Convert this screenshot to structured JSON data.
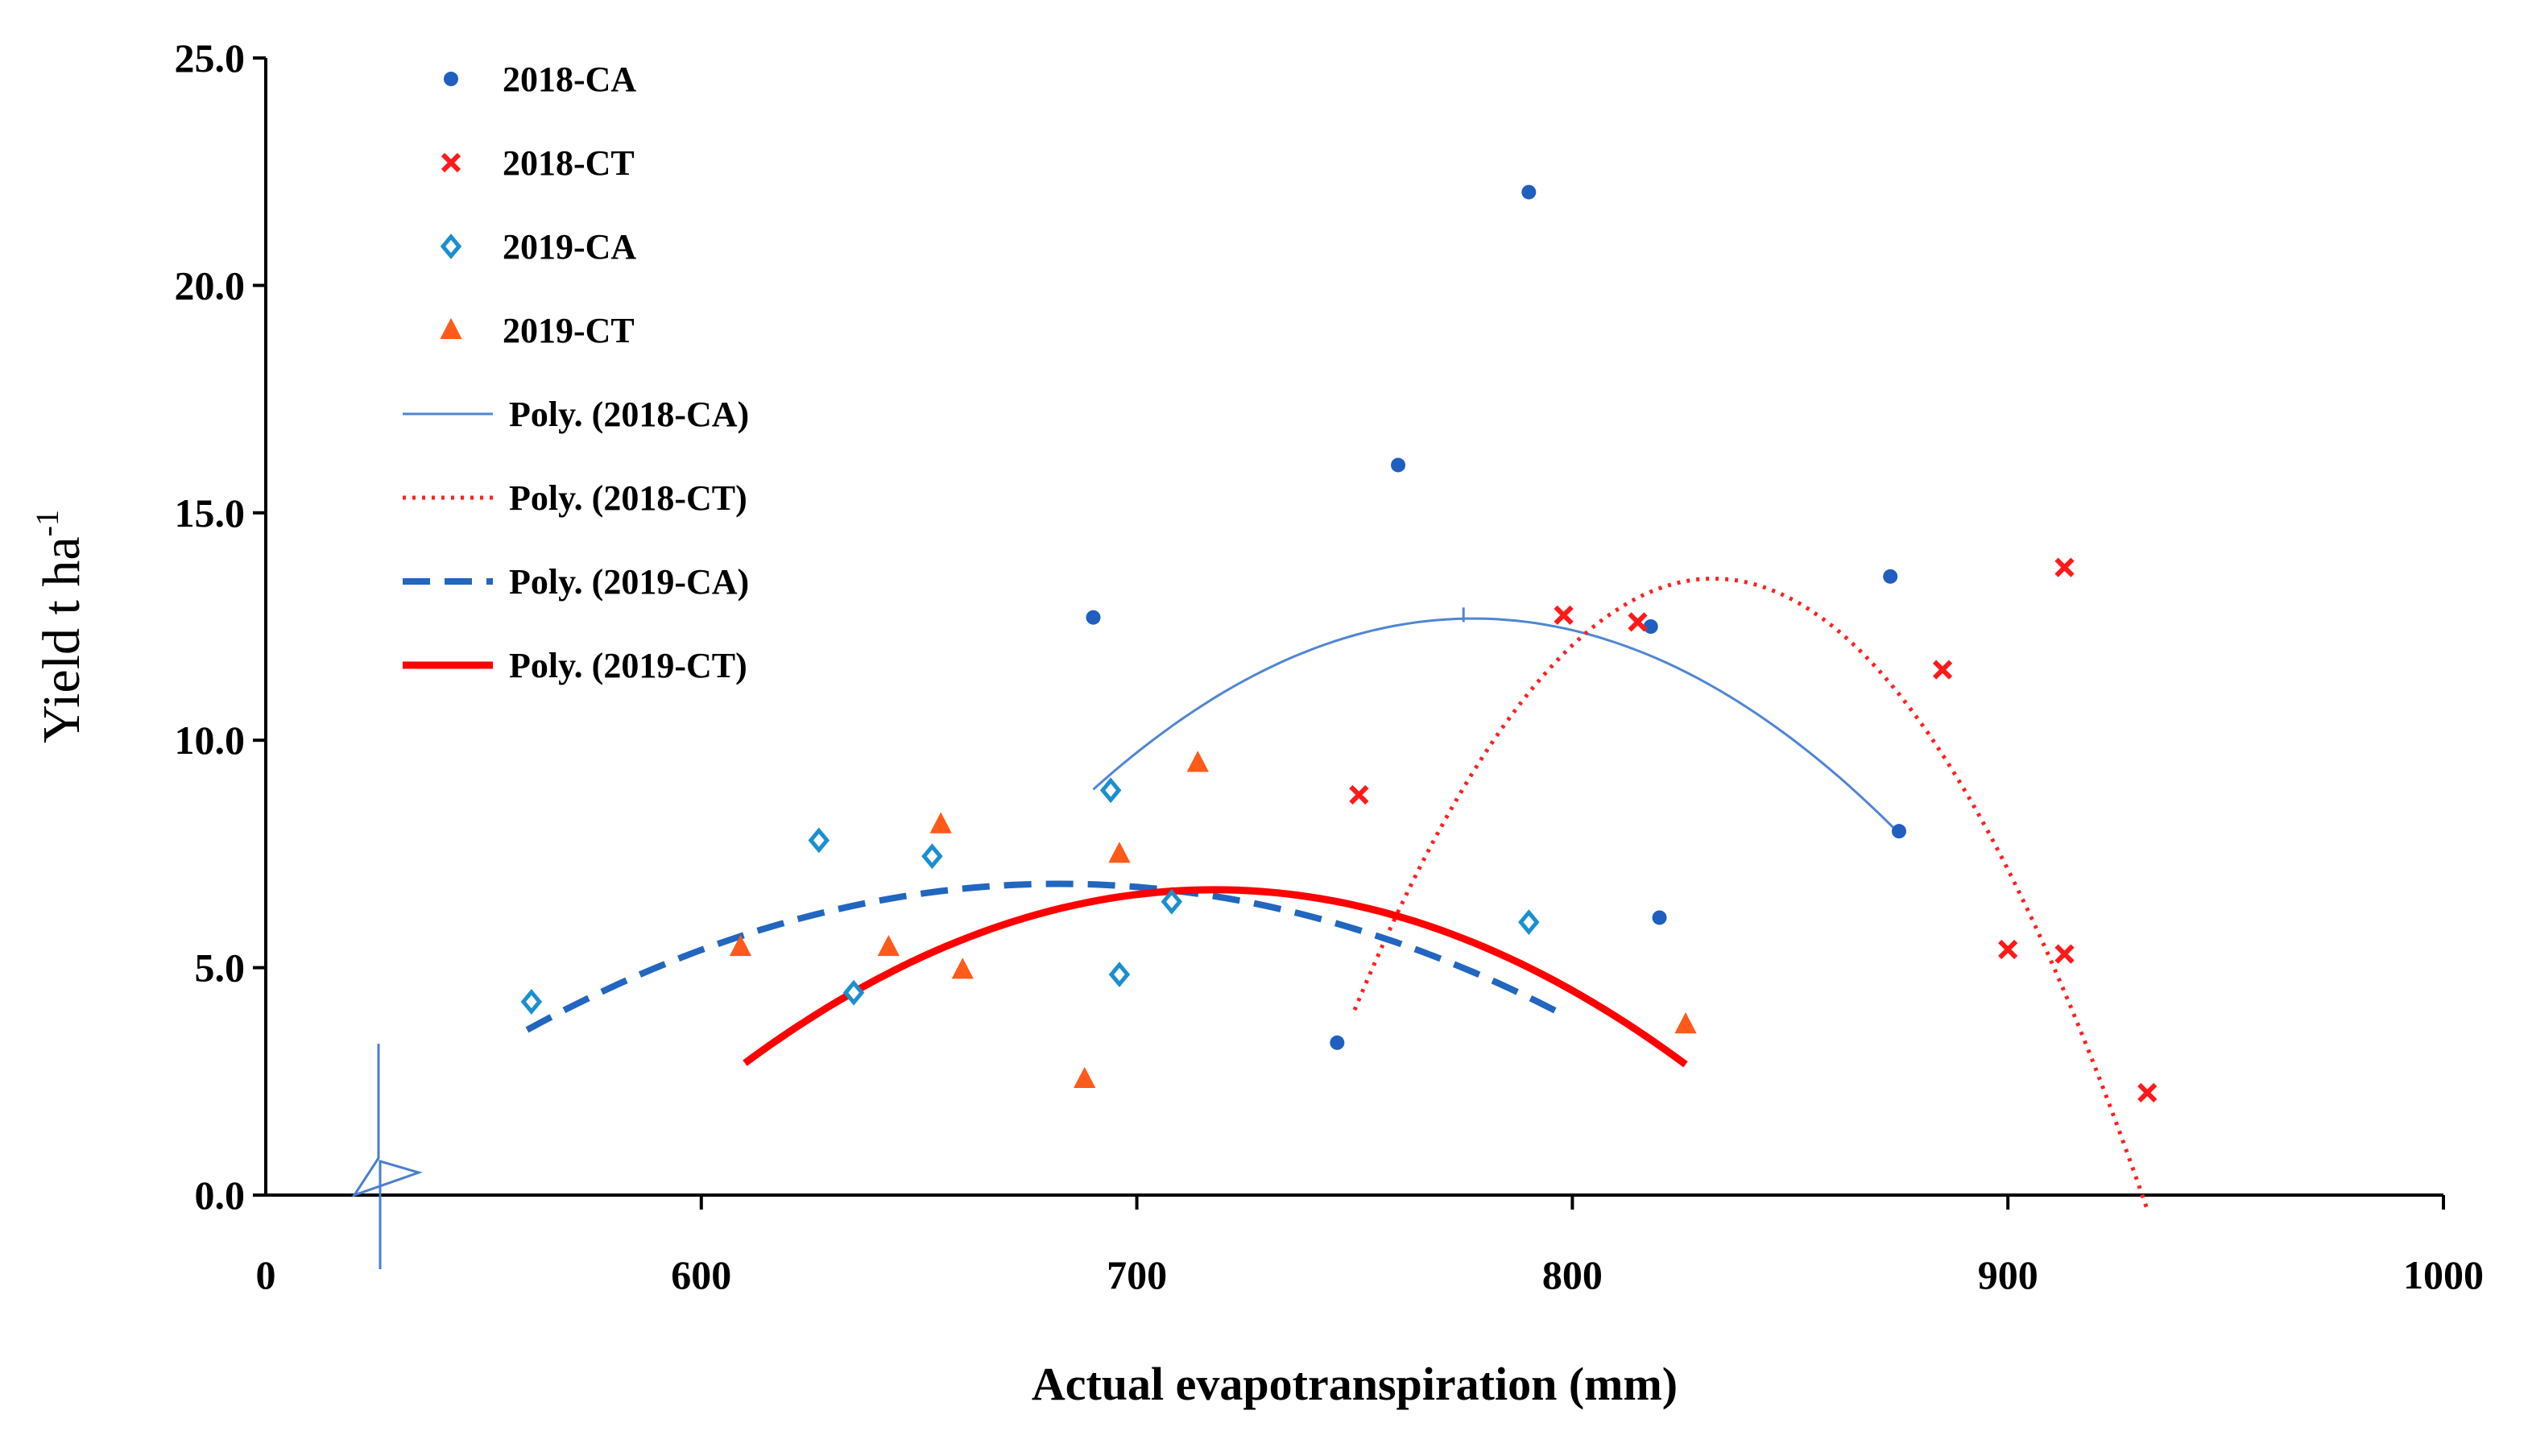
{
  "chart_data": {
    "type": "scatter",
    "title": "",
    "xlabel": "Actual evapotranspiration (mm)",
    "ylabel": "Yield t ha",
    "ylabel_superscript": "-1",
    "x_origin_label": "0",
    "xlim": [
      500,
      1000
    ],
    "ylim": [
      0,
      25
    ],
    "x_ticks": [
      "600",
      "700",
      "800",
      "900",
      "1000"
    ],
    "y_ticks": [
      "0.0",
      "5.0",
      "10.0",
      "15.0",
      "20.0",
      "25.0"
    ],
    "legend_position": "top-left",
    "colors": {
      "ca2018": "#1f5fbf",
      "ct2018": "#ff1a1a",
      "ca2019": "#1a8fd1",
      "ct2019": "#ff5a1a",
      "trend_ca2018": "#4f86d4",
      "trend_ct2018": "#ff2020",
      "trend_ca2019": "#2166c0",
      "trend_ct2019": "#ff0000"
    },
    "series": [
      {
        "name": "2018-CA",
        "kind": "points",
        "marker": "dot",
        "color_key": "ca2018",
        "points": [
          [
            690,
            12.7
          ],
          [
            746,
            3.35
          ],
          [
            760,
            16.05
          ],
          [
            790,
            22.05
          ],
          [
            818,
            12.5
          ],
          [
            820,
            6.1
          ],
          [
            873,
            13.6
          ],
          [
            875,
            8.0
          ]
        ]
      },
      {
        "name": "2018-CT",
        "kind": "points",
        "marker": "x",
        "color_key": "ct2018",
        "points": [
          [
            751,
            8.8
          ],
          [
            798,
            12.75
          ],
          [
            815,
            12.6
          ],
          [
            885,
            11.55
          ],
          [
            900,
            5.4
          ],
          [
            913,
            13.8
          ],
          [
            913,
            5.3
          ],
          [
            932,
            2.25
          ]
        ]
      },
      {
        "name": "2019-CA",
        "kind": "points",
        "marker": "diamond",
        "color_key": "ca2019",
        "points": [
          [
            561,
            4.25
          ],
          [
            627,
            7.8
          ],
          [
            635,
            4.45
          ],
          [
            653,
            7.45
          ],
          [
            694,
            8.9
          ],
          [
            696,
            4.85
          ],
          [
            708,
            6.45
          ],
          [
            790,
            6.0
          ]
        ]
      },
      {
        "name": "2019-CT",
        "kind": "points",
        "marker": "triangle",
        "color_key": "ct2019",
        "points": [
          [
            609,
            5.45
          ],
          [
            643,
            5.45
          ],
          [
            655,
            8.15
          ],
          [
            660,
            4.95
          ],
          [
            688,
            2.55
          ],
          [
            696,
            7.5
          ],
          [
            714,
            9.5
          ],
          [
            826,
            3.75
          ]
        ]
      },
      {
        "name": "Poly. (2018-CA)",
        "kind": "trend",
        "style": "thin-solid",
        "color_key": "trend_ca2018",
        "x_range": [
          690,
          875
        ],
        "coefficients": [
          -0.000494,
          0.7679,
          -285.74
        ]
      },
      {
        "name": "Poly. (2018-CT)",
        "kind": "trend",
        "style": "dotted",
        "color_key": "trend_ct2018",
        "x_range": [
          750,
          932
        ],
        "coefficients": [
          -0.001398,
          2.3273,
          -955.03
        ]
      },
      {
        "name": "Poly. (2019-CA)",
        "kind": "trend",
        "style": "dashed",
        "color_key": "trend_ca2019",
        "x_range": [
          560,
          798
        ],
        "coefficients": [
          -0.000215,
          0.29335,
          -93.22
        ]
      },
      {
        "name": "Poly. (2019-CT)",
        "kind": "trend",
        "style": "thick-solid",
        "color_key": "trend_ct2019",
        "x_range": [
          610,
          826
        ],
        "coefficients": [
          -0.000328,
          0.47087,
          -162.28
        ]
      }
    ]
  }
}
